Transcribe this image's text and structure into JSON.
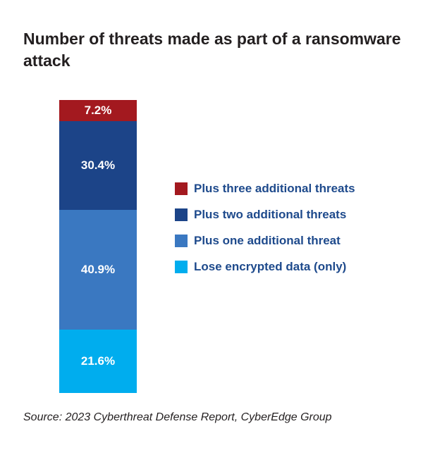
{
  "chart_data": {
    "type": "bar",
    "stacked": true,
    "title": "Number of threats made as part of a ransomware attack",
    "unit": "%",
    "series": [
      {
        "name": "Plus three additional threats",
        "value": 7.2,
        "label": "7.2%",
        "color": "#a3191f"
      },
      {
        "name": "Plus two additional threats",
        "value": 30.4,
        "label": "30.4%",
        "color": "#1c4488"
      },
      {
        "name": "Plus one additional threat",
        "value": 40.9,
        "label": "40.9%",
        "color": "#3a78c1"
      },
      {
        "name": "Lose encrypted data (only)",
        "value": 21.6,
        "label": "21.6%",
        "color": "#00adee"
      }
    ],
    "legend_position": "right"
  },
  "footer": {
    "source": "Source: 2023 Cyberthreat Defense Report, CyberEdge Group"
  }
}
